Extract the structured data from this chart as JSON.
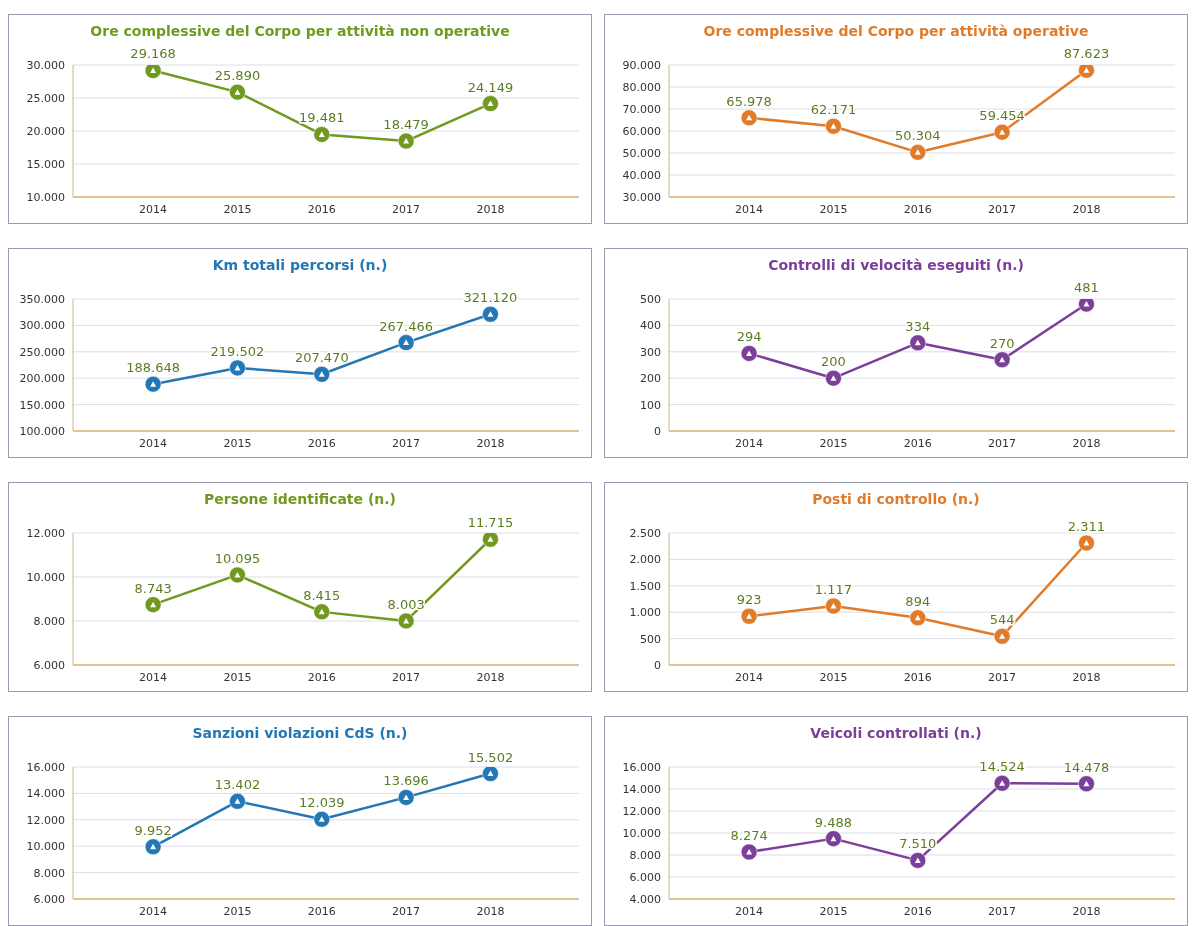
{
  "chart_data": [
    {
      "type": "line",
      "title": "Ore complessive del Corpo per attività non operative",
      "categories": [
        "2014",
        "2015",
        "2016",
        "2017",
        "2018"
      ],
      "series": [
        {
          "color": "#6f9a1f",
          "values": [
            29168,
            25890,
            19481,
            18479,
            24149
          ],
          "value_labels": [
            "29.168",
            "25.890",
            "19.481",
            "18.479",
            "24.149"
          ]
        }
      ],
      "ylim": [
        10000,
        30000
      ],
      "yticks": [
        {
          "value": 10000,
          "label": "10.000"
        },
        {
          "value": 15000,
          "label": "15.000"
        },
        {
          "value": 20000,
          "label": "20.000"
        },
        {
          "value": 25000,
          "label": "25.000"
        },
        {
          "value": 30000,
          "label": "30.000"
        }
      ],
      "grid": "y",
      "marker": "circle",
      "legend": false
    },
    {
      "type": "line",
      "title": "Ore complessive del Corpo per attività operative",
      "categories": [
        "2014",
        "2015",
        "2016",
        "2017",
        "2018"
      ],
      "series": [
        {
          "color": "#e07b2a",
          "values": [
            65978,
            62171,
            50304,
            59454,
            87623
          ],
          "value_labels": [
            "65.978",
            "62.171",
            "50.304",
            "59.454",
            "87.623"
          ]
        }
      ],
      "ylim": [
        30000,
        90000
      ],
      "yticks": [
        {
          "value": 30000,
          "label": "30.000"
        },
        {
          "value": 40000,
          "label": "40.000"
        },
        {
          "value": 50000,
          "label": "50.000"
        },
        {
          "value": 60000,
          "label": "60.000"
        },
        {
          "value": 70000,
          "label": "70.000"
        },
        {
          "value": 80000,
          "label": "80.000"
        },
        {
          "value": 90000,
          "label": "90.000"
        }
      ],
      "grid": "y",
      "marker": "circle",
      "legend": false
    },
    {
      "type": "line",
      "title": "Km totali percorsi (n.)",
      "categories": [
        "2014",
        "2015",
        "2016",
        "2017",
        "2018"
      ],
      "series": [
        {
          "color": "#2477b5",
          "values": [
            188648,
            219502,
            207470,
            267466,
            321120
          ],
          "value_labels": [
            "188.648",
            "219.502",
            "207.470",
            "267.466",
            "321.120"
          ]
        }
      ],
      "ylim": [
        100000,
        350000
      ],
      "yticks": [
        {
          "value": 100000,
          "label": "100.000"
        },
        {
          "value": 150000,
          "label": "150.000"
        },
        {
          "value": 200000,
          "label": "200.000"
        },
        {
          "value": 250000,
          "label": "250.000"
        },
        {
          "value": 300000,
          "label": "300.000"
        },
        {
          "value": 350000,
          "label": "350.000"
        }
      ],
      "grid": "y",
      "marker": "circle",
      "legend": false
    },
    {
      "type": "line",
      "title": "Controlli di velocità eseguiti (n.)",
      "categories": [
        "2014",
        "2015",
        "2016",
        "2017",
        "2018"
      ],
      "series": [
        {
          "color": "#7b3f9a",
          "values": [
            294,
            200,
            334,
            270,
            481
          ],
          "value_labels": [
            "294",
            "200",
            "334",
            "270",
            "481"
          ]
        }
      ],
      "ylim": [
        0,
        500
      ],
      "yticks": [
        0,
        100,
        200,
        300,
        400,
        500
      ],
      "grid": "y",
      "marker": "circle",
      "legend": false
    },
    {
      "type": "line",
      "title": "Persone identificate (n.)",
      "categories": [
        "2014",
        "2015",
        "2016",
        "2017",
        "2018"
      ],
      "series": [
        {
          "color": "#6f9a1f",
          "values": [
            8743,
            10095,
            8415,
            8003,
            11715
          ],
          "value_labels": [
            "8.743",
            "10.095",
            "8.415",
            "8.003",
            "11.715"
          ]
        }
      ],
      "ylim": [
        6000,
        12000
      ],
      "yticks": [
        {
          "value": 6000,
          "label": "6.000"
        },
        {
          "value": 8000,
          "label": "8.000"
        },
        {
          "value": 10000,
          "label": "10.000"
        },
        {
          "value": 12000,
          "label": "12.000"
        }
      ],
      "grid": "y",
      "marker": "circle",
      "legend": false
    },
    {
      "type": "line",
      "title": "Posti di controllo (n.)",
      "categories": [
        "2014",
        "2015",
        "2016",
        "2017",
        "2018"
      ],
      "series": [
        {
          "color": "#e07b2a",
          "values": [
            923,
            1117,
            894,
            544,
            2311
          ],
          "value_labels": [
            "923",
            "1.117",
            "894",
            "544",
            "2.311"
          ]
        }
      ],
      "ylim": [
        0,
        2500
      ],
      "yticks": [
        0,
        500,
        {
          "value": 1000,
          "label": "1.000"
        },
        {
          "value": 1500,
          "label": "1.500"
        },
        {
          "value": 2000,
          "label": "2.000"
        },
        {
          "value": 2500,
          "label": "2.500"
        }
      ],
      "grid": "y",
      "marker": "circle",
      "legend": false
    },
    {
      "type": "line",
      "title": "Sanzioni violazioni CdS (n.)",
      "categories": [
        "2014",
        "2015",
        "2016",
        "2017",
        "2018"
      ],
      "series": [
        {
          "color": "#2477b5",
          "values": [
            9952,
            13402,
            12039,
            13696,
            15502
          ],
          "value_labels": [
            "9.952",
            "13.402",
            "12.039",
            "13.696",
            "15.502"
          ]
        }
      ],
      "ylim": [
        6000,
        16000
      ],
      "yticks": [
        {
          "value": 6000,
          "label": "6.000"
        },
        {
          "value": 8000,
          "label": "8.000"
        },
        {
          "value": 10000,
          "label": "10.000"
        },
        {
          "value": 12000,
          "label": "12.000"
        },
        {
          "value": 14000,
          "label": "14.000"
        },
        {
          "value": 16000,
          "label": "16.000"
        }
      ],
      "grid": "y",
      "marker": "circle",
      "legend": false
    },
    {
      "type": "line",
      "title": "Veicoli controllati (n.)",
      "categories": [
        "2014",
        "2015",
        "2016",
        "2017",
        "2018"
      ],
      "series": [
        {
          "color": "#7b3f9a",
          "values": [
            8274,
            9488,
            7510,
            14524,
            14478
          ],
          "value_labels": [
            "8.274",
            "9.488",
            "7.510",
            "14.524",
            "14.478"
          ]
        }
      ],
      "ylim": [
        4000,
        16000
      ],
      "yticks": [
        {
          "value": 4000,
          "label": "4.000"
        },
        {
          "value": 6000,
          "label": "6.000"
        },
        {
          "value": 8000,
          "label": "8.000"
        },
        {
          "value": 10000,
          "label": "10.000"
        },
        {
          "value": 12000,
          "label": "12.000"
        },
        {
          "value": 14000,
          "label": "14.000"
        },
        {
          "value": 16000,
          "label": "16.000"
        }
      ],
      "grid": "y",
      "marker": "circle",
      "legend": false
    }
  ]
}
